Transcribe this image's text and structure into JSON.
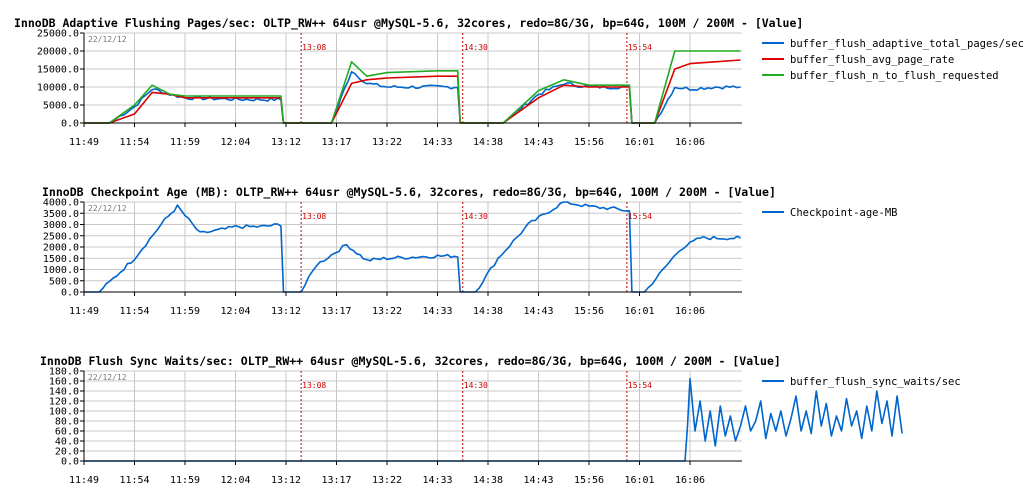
{
  "chart_data": [
    {
      "type": "line",
      "title": "InnoDB Adaptive Flushing Pages/sec: OLTP_RW++ 64usr @MySQL-5.6, 32cores, redo=8G/3G, bp=64G, 100M / 200M - [Value]",
      "date_label": "22/12/12",
      "x_ticks": [
        "11:49",
        "11:54",
        "11:59",
        "12:04",
        "13:12",
        "13:17",
        "13:22",
        "14:33",
        "14:38",
        "14:43",
        "15:56",
        "16:01",
        "16:06"
      ],
      "y_ticks": [
        "0.0",
        "5000.0",
        "10000.0",
        "15000.0",
        "20000.0",
        "25000.0"
      ],
      "ylim": [
        0,
        25000
      ],
      "markers": [
        {
          "at": 4.3,
          "label": "13:08"
        },
        {
          "at": 7.5,
          "label": "14:30"
        },
        {
          "at": 10.75,
          "label": "15:54"
        }
      ],
      "grid": true,
      "legend_position": "right",
      "series": [
        {
          "name": "buffer_flush_adaptive_total_pages/sec",
          "color": "#0066cc",
          "noisy": true,
          "x": [
            0,
            0.5,
            1,
            1.35,
            1.7,
            2.0,
            2.5,
            3.0,
            3.5,
            3.9,
            3.95,
            4.7,
            4.9,
            5.3,
            5.6,
            6.0,
            7,
            7.4,
            7.45,
            8.3,
            9,
            9.5,
            10,
            10.5,
            10.8,
            10.85,
            11.05,
            11.3,
            11.7,
            12,
            12.5,
            13
          ],
          "y": [
            0,
            0,
            4500,
            9500,
            8000,
            7000,
            6800,
            6600,
            6500,
            6500,
            0,
            0,
            0,
            14500,
            11000,
            10000,
            10000,
            10000,
            0,
            0,
            8000,
            11000,
            10000,
            10000,
            10000,
            0,
            0,
            0,
            10000,
            9500,
            10000,
            10000
          ]
        },
        {
          "name": "buffer_flush_avg_page_rate",
          "color": "#dd0000",
          "noisy": false,
          "x": [
            0,
            0.5,
            1,
            1.35,
            1.7,
            2.0,
            2.5,
            3.0,
            3.5,
            3.9,
            3.95,
            4.7,
            4.9,
            5.3,
            5.6,
            6.0,
            7,
            7.4,
            7.45,
            8.3,
            9,
            9.5,
            10,
            10.5,
            10.8,
            10.85,
            11.05,
            11.3,
            11.7,
            12,
            12.5,
            13
          ],
          "y": [
            0,
            0,
            2500,
            8500,
            8000,
            7000,
            7000,
            7000,
            7000,
            7000,
            0,
            0,
            0,
            11000,
            12000,
            12500,
            13000,
            13000,
            0,
            0,
            7000,
            10500,
            10000,
            10000,
            10000,
            0,
            0,
            0,
            15000,
            16500,
            17000,
            17500
          ]
        },
        {
          "name": "buffer_flush_n_to_flush_requested",
          "color": "#22aa22",
          "noisy": false,
          "x": [
            0,
            0.5,
            1,
            1.35,
            1.7,
            2.0,
            2.5,
            3.0,
            3.5,
            3.9,
            3.95,
            4.7,
            4.9,
            5.3,
            5.6,
            6.0,
            7,
            7.4,
            7.45,
            8.3,
            9,
            9.5,
            10,
            10.5,
            10.8,
            10.85,
            11.05,
            11.3,
            11.7,
            12,
            12.5,
            13
          ],
          "y": [
            0,
            0,
            5000,
            10500,
            8000,
            7500,
            7500,
            7500,
            7500,
            7500,
            0,
            0,
            0,
            17000,
            13000,
            14000,
            14500,
            14500,
            0,
            0,
            9000,
            12000,
            10500,
            10500,
            10500,
            0,
            0,
            0,
            20000,
            20000,
            20000,
            20000
          ]
        }
      ]
    },
    {
      "type": "line",
      "title": "InnoDB Checkpoint Age (MB): OLTP_RW++ 64usr @MySQL-5.6, 32cores, redo=8G/3G, bp=64G, 100M / 200M - [Value]",
      "date_label": "22/12/12",
      "x_ticks": [
        "11:49",
        "11:54",
        "11:59",
        "12:04",
        "13:12",
        "13:17",
        "13:22",
        "14:33",
        "14:38",
        "14:43",
        "15:56",
        "16:01",
        "16:06"
      ],
      "y_ticks": [
        "0.0",
        "500.0",
        "1000.0",
        "1500.0",
        "2000.0",
        "2500.0",
        "3000.0",
        "3500.0",
        "4000.0"
      ],
      "ylim": [
        0,
        4000
      ],
      "markers": [
        {
          "at": 4.3,
          "label": "13:08"
        },
        {
          "at": 7.5,
          "label": "14:30"
        },
        {
          "at": 10.75,
          "label": "15:54"
        }
      ],
      "grid": true,
      "legend_position": "right",
      "series": [
        {
          "name": "Checkpoint-age-MB",
          "color": "#0066cc",
          "noisy": true,
          "x": [
            0,
            0.3,
            1,
            1.6,
            1.85,
            2.3,
            2.8,
            3,
            3.5,
            3.9,
            3.95,
            4.3,
            4.6,
            5.2,
            5.6,
            6,
            6.5,
            7,
            7.4,
            7.45,
            7.75,
            8.2,
            8.8,
            9.5,
            10,
            10.5,
            10.8,
            10.85,
            11.1,
            11.4,
            11.8,
            12.2,
            12.6,
            13
          ],
          "y": [
            0,
            0,
            1500,
            3200,
            3800,
            2600,
            2800,
            2900,
            2900,
            3000,
            0,
            0,
            1200,
            2100,
            1400,
            1500,
            1550,
            1600,
            1600,
            0,
            0,
            1500,
            3000,
            4000,
            3800,
            3700,
            3600,
            0,
            0,
            800,
            1900,
            2400,
            2400,
            2400
          ]
        }
      ]
    },
    {
      "type": "line",
      "title": "InnoDB Flush Sync Waits/sec: OLTP_RW++ 64usr @MySQL-5.6, 32cores, redo=8G/3G, bp=64G, 100M / 200M - [Value]",
      "date_label": "22/12/12",
      "x_ticks": [
        "11:49",
        "11:54",
        "11:59",
        "12:04",
        "13:12",
        "13:17",
        "13:22",
        "14:33",
        "14:38",
        "14:43",
        "15:56",
        "16:01",
        "16:06"
      ],
      "y_ticks": [
        "0.0",
        "20.0",
        "40.0",
        "60.0",
        "80.0",
        "100.0",
        "120.0",
        "140.0",
        "160.0",
        "180.0"
      ],
      "ylim": [
        0,
        180
      ],
      "markers": [
        {
          "at": 4.3,
          "label": "13:08"
        },
        {
          "at": 7.5,
          "label": "14:30"
        },
        {
          "at": 10.75,
          "label": "15:54"
        }
      ],
      "grid": true,
      "legend_position": "right",
      "series": [
        {
          "name": "buffer_flush_sync_waits/sec",
          "color": "#0066cc",
          "noisy": false,
          "x": [
            0,
            11.9,
            11.95,
            12.0,
            12.1,
            12.2,
            12.3,
            12.4,
            12.5,
            12.6,
            12.7,
            12.8,
            12.9,
            13.0,
            13.1,
            13.2,
            13.3,
            13.4,
            13.5,
            13.6,
            13.7,
            13.8,
            13.9,
            14.0,
            14.1,
            14.2,
            14.3,
            14.4,
            14.5,
            14.6,
            14.7,
            14.8,
            14.9,
            15.0,
            15.1,
            15.2,
            15.3,
            15.4,
            15.5,
            15.6,
            15.7,
            15.8,
            15.9,
            16.0,
            16.1,
            16.2
          ],
          "y": [
            0,
            0,
            70,
            165,
            60,
            120,
            40,
            100,
            30,
            110,
            50,
            90,
            40,
            70,
            110,
            60,
            80,
            120,
            45,
            95,
            60,
            100,
            50,
            85,
            130,
            60,
            100,
            55,
            140,
            70,
            115,
            50,
            90,
            60,
            125,
            70,
            100,
            45,
            110,
            60,
            140,
            75,
            120,
            50,
            130,
            55
          ]
        }
      ]
    }
  ]
}
